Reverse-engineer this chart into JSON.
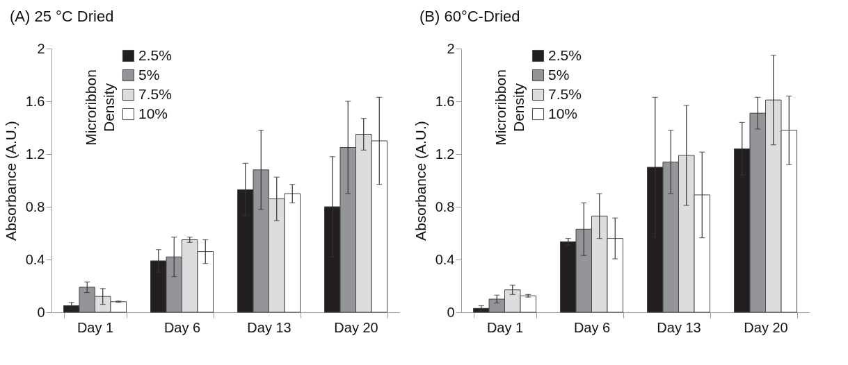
{
  "chart_data": [
    {
      "type": "bar",
      "title": "(A) 25 °C Dried",
      "ylabel": "Absorbance (A.U.)",
      "legend_title": "Microribbon Density",
      "categories": [
        "Day 1",
        "Day 6",
        "Day 13",
        "Day 20"
      ],
      "ylim": [
        0,
        2
      ],
      "yticks": [
        0,
        0.4,
        0.8,
        1.2,
        1.6,
        2
      ],
      "grid": false,
      "legend": "top left",
      "series": [
        {
          "name": "2.5%",
          "color": "#231f20",
          "values": [
            0.05,
            0.39,
            0.93,
            0.8
          ],
          "errors": [
            0.025,
            0.085,
            0.2,
            0.38
          ]
        },
        {
          "name": "5%",
          "color": "#939598",
          "values": [
            0.19,
            0.42,
            1.08,
            1.25
          ],
          "errors": [
            0.04,
            0.15,
            0.3,
            0.35
          ]
        },
        {
          "name": "7.5%",
          "color": "#dcdddf",
          "values": [
            0.12,
            0.55,
            0.86,
            1.35
          ],
          "errors": [
            0.06,
            0.02,
            0.165,
            0.12
          ]
        },
        {
          "name": "10%",
          "color": "#ffffff",
          "values": [
            0.08,
            0.46,
            0.9,
            1.3
          ],
          "errors": [
            0.005,
            0.09,
            0.07,
            0.33
          ]
        }
      ]
    },
    {
      "type": "bar",
      "title": "(B) 60°C-Dried",
      "ylabel": "Absorbance (A.U.)",
      "legend_title": "Microribbon Density",
      "categories": [
        "Day 1",
        "Day 6",
        "Day 13",
        "Day 20"
      ],
      "ylim": [
        0,
        2
      ],
      "yticks": [
        0,
        0.4,
        0.8,
        1.2,
        1.6,
        2
      ],
      "grid": false,
      "legend": "top left",
      "series": [
        {
          "name": "2.5%",
          "color": "#231f20",
          "values": [
            0.03,
            0.535,
            1.1,
            1.24
          ],
          "errors": [
            0.02,
            0.025,
            0.53,
            0.2
          ]
        },
        {
          "name": "5%",
          "color": "#939598",
          "values": [
            0.1,
            0.63,
            1.14,
            1.51
          ],
          "errors": [
            0.03,
            0.2,
            0.24,
            0.12
          ]
        },
        {
          "name": "7.5%",
          "color": "#dcdddf",
          "values": [
            0.17,
            0.73,
            1.19,
            1.61
          ],
          "errors": [
            0.035,
            0.17,
            0.38,
            0.34
          ]
        },
        {
          "name": "10%",
          "color": "#ffffff",
          "values": [
            0.125,
            0.56,
            0.89,
            1.38
          ],
          "errors": [
            0.01,
            0.155,
            0.325,
            0.26
          ]
        }
      ]
    }
  ]
}
